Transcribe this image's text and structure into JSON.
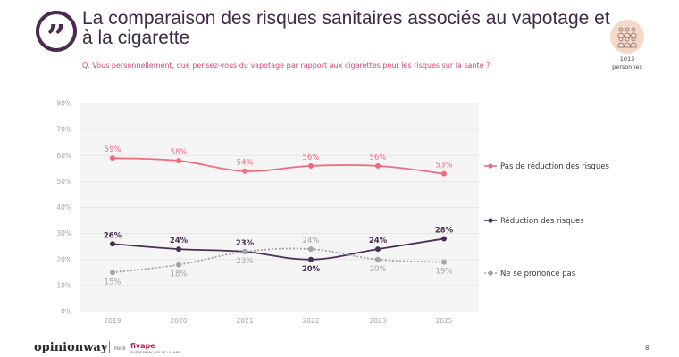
{
  "header": {
    "quote_glyph": "”",
    "title": "La comparaison des risques sanitaires associés au vapotage et à la cigarette",
    "question": "Q. Vous personnellement, que pensez-vous du vapotage par rapport aux cigarettes pour les risques sur la santé ?"
  },
  "sample": {
    "icon": "people-group-icon",
    "count": "1013",
    "unit": "personnes"
  },
  "chart_data": {
    "type": "line",
    "x": [
      "2019",
      "2020",
      "2021",
      "2022",
      "2023",
      "2025"
    ],
    "yticks": [
      "0%",
      "10%",
      "20%",
      "30%",
      "40%",
      "50%",
      "60%",
      "70%",
      "80%"
    ],
    "ylim": [
      0,
      80
    ],
    "grid": true,
    "legend_position": "right",
    "series": [
      {
        "name": "Pas de réduction des risques",
        "values": [
          59,
          58,
          54,
          56,
          56,
          53
        ],
        "labels": [
          "59%",
          "58%",
          "54%",
          "56%",
          "56%",
          "53%"
        ],
        "color": "#f06b7e",
        "dashed": false,
        "label_side": "above"
      },
      {
        "name": "Réduction des risques",
        "values": [
          26,
          24,
          23,
          20,
          24,
          28
        ],
        "labels": [
          "26%",
          "24%",
          "23%",
          "20%",
          "24%",
          "28%"
        ],
        "label_sides": [
          "above",
          "above",
          "above",
          "below",
          "above",
          "above"
        ],
        "color": "#4a2f55",
        "dashed": false
      },
      {
        "name": "Ne se prononce pas",
        "values": [
          15,
          18,
          23,
          24,
          20,
          19
        ],
        "labels": [
          "15%",
          "18%",
          "23%",
          "24%",
          "20%",
          "19%"
        ],
        "label_sides": [
          "below",
          "below",
          "below",
          "above",
          "below",
          "below"
        ],
        "color": "#a4a4a8",
        "dashed": true
      }
    ]
  },
  "footer": {
    "brand": "opinionway",
    "pour": "POUR",
    "client": "fivape",
    "client_sub": "FILIÈRE FRANÇAISE DE LA VAPE",
    "page": "8"
  }
}
